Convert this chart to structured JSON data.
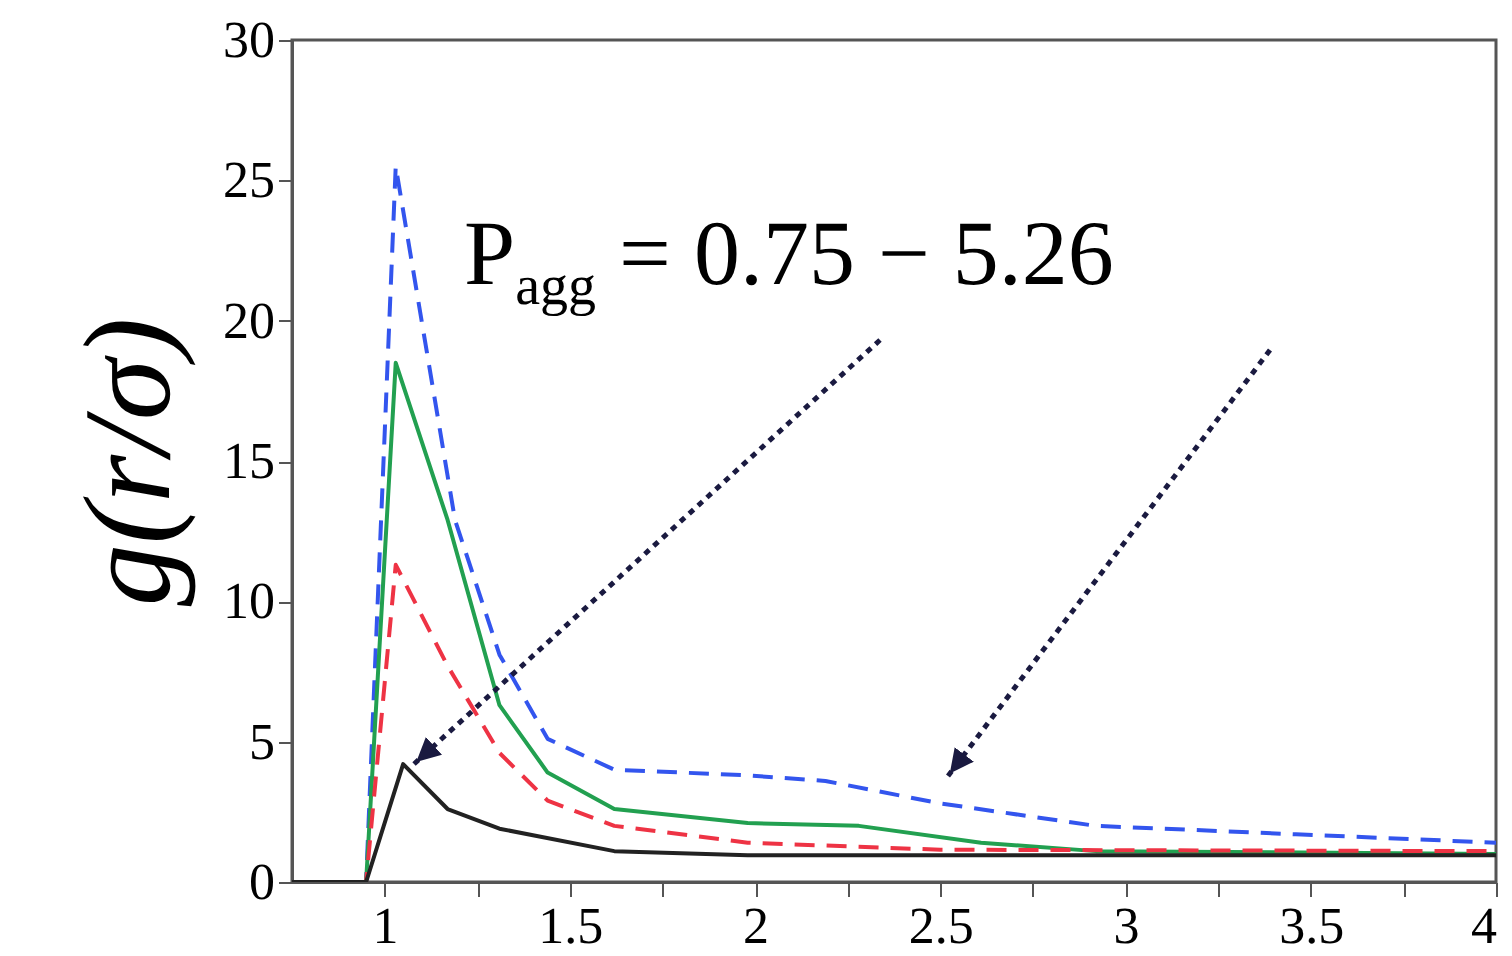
{
  "chart_data": {
    "type": "line",
    "ylabel": "g(r/σ)",
    "annotations": [
      "P$_{agg}$ = 0.75 − 5.26"
    ],
    "xlim": [
      0.75,
      4
    ],
    "ylim": [
      0,
      30
    ],
    "xticks": [
      1,
      {
        "value": 1.25,
        "label": null
      },
      1.5,
      {
        "value": 1.75,
        "label": null
      },
      2,
      {
        "value": 2.25,
        "label": null
      },
      2.5,
      {
        "value": 2.75,
        "label": null
      },
      3,
      {
        "value": 3.25,
        "label": null
      },
      3.5,
      {
        "value": 3.75,
        "label": null
      },
      4
    ],
    "yticks": [
      0,
      5,
      10,
      15,
      20,
      25,
      30
    ],
    "grid": false,
    "series": [
      {
        "color": "#3355ee",
        "line_style": "dashed",
        "x": [
          0.75,
          0.95,
          1.03,
          1.19,
          1.31,
          1.44,
          1.62,
          1.98,
          2.19,
          2.5,
          2.92,
          3.46,
          4.0
        ],
        "values": [
          0,
          0,
          25.5,
          12.9,
          8.1,
          5.1,
          4.0,
          3.8,
          3.6,
          2.8,
          2.0,
          1.7,
          1.4
        ]
      },
      {
        "color": "#22a050",
        "line_style": "solid",
        "x": [
          0.75,
          0.95,
          1.03,
          1.17,
          1.31,
          1.44,
          1.62,
          1.98,
          2.28,
          2.61,
          2.92,
          4.0
        ],
        "values": [
          0,
          0,
          18.5,
          12.9,
          6.3,
          3.9,
          2.6,
          2.1,
          2.0,
          1.4,
          1.1,
          1.0
        ]
      },
      {
        "color": "#ee3344",
        "line_style": "dashed",
        "x": [
          0.75,
          0.95,
          1.03,
          1.17,
          1.31,
          1.44,
          1.62,
          1.98,
          2.5,
          4.0
        ],
        "values": [
          0,
          0,
          11.3,
          7.7,
          4.6,
          2.9,
          2.0,
          1.4,
          1.15,
          1.1
        ]
      },
      {
        "color": "#222222",
        "line_style": "solid",
        "x": [
          0.75,
          0.95,
          1.05,
          1.17,
          1.31,
          1.62,
          1.98,
          2.5,
          4.0
        ],
        "values": [
          0,
          0,
          4.2,
          2.6,
          1.9,
          1.1,
          0.95,
          0.95,
          0.95
        ]
      }
    ]
  }
}
